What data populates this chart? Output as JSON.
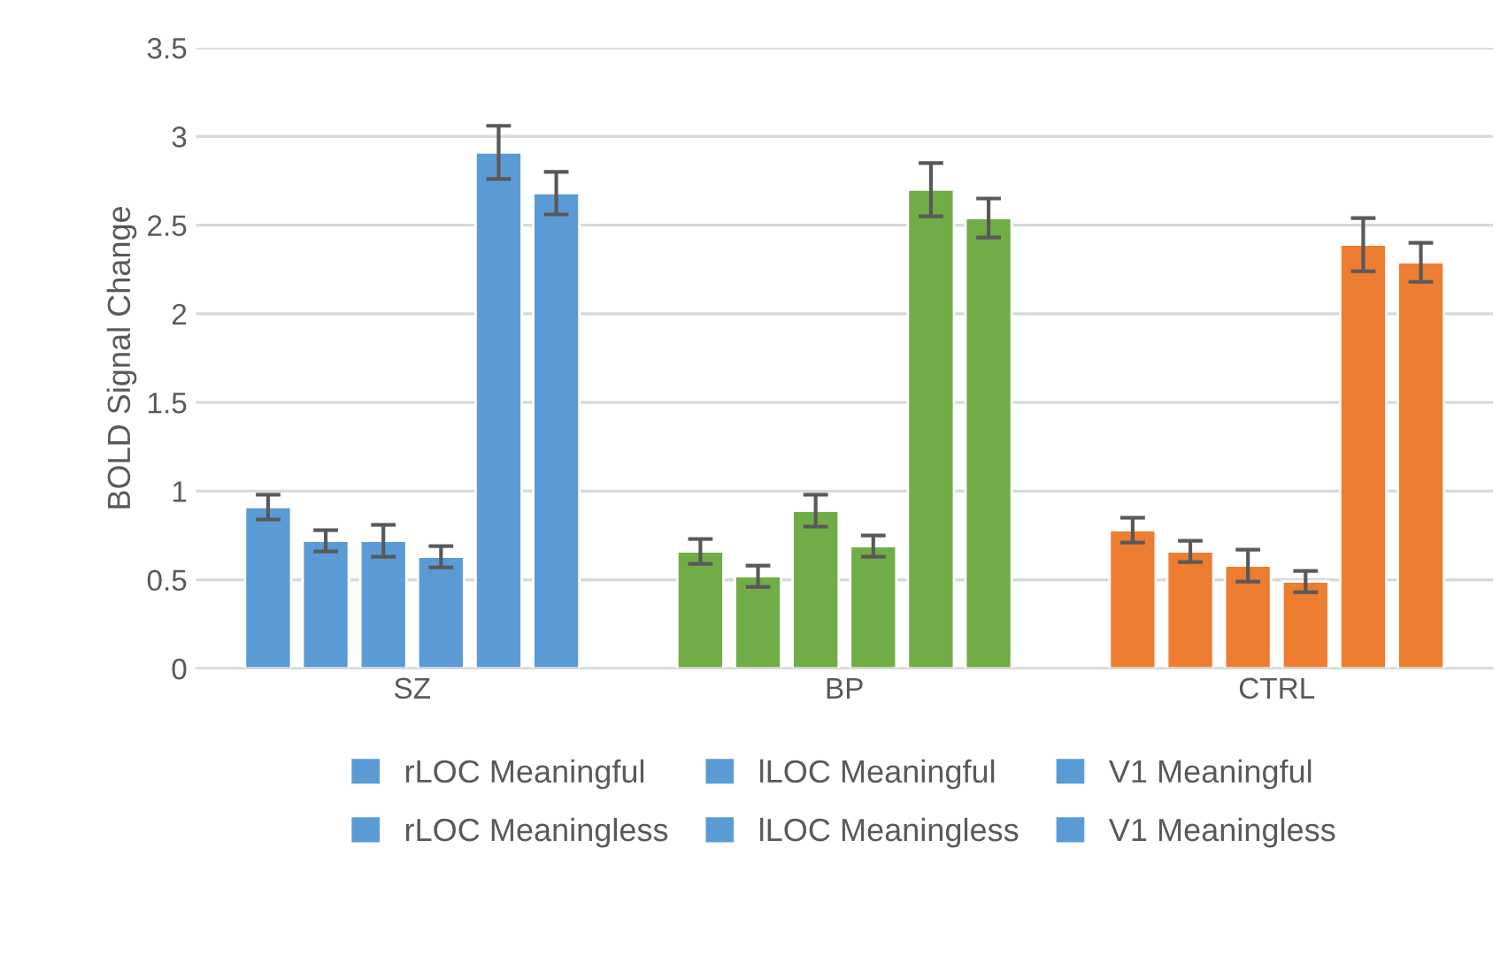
{
  "chart_data": {
    "type": "bar",
    "ylabel": "BOLD Signal Change",
    "categories": [
      "SZ",
      "BP",
      "CTRL"
    ],
    "series": [
      {
        "name": "rLOC Meaningful",
        "color": "#5b9bd5",
        "colors": [
          "#5b9bd5",
          "#70ad47",
          "#ed7d31"
        ],
        "values": [
          0.91,
          0.66,
          0.78
        ],
        "errors": [
          0.07,
          0.07,
          0.07
        ]
      },
      {
        "name": "rLOC Meaningless",
        "color": "#5b9bd5",
        "colors": [
          "#5b9bd5",
          "#70ad47",
          "#ed7d31"
        ],
        "values": [
          0.72,
          0.52,
          0.66
        ],
        "errors": [
          0.06,
          0.06,
          0.06
        ]
      },
      {
        "name": "lLOC Meaningful",
        "color": "#5b9bd5",
        "colors": [
          "#5b9bd5",
          "#70ad47",
          "#ed7d31"
        ],
        "values": [
          0.72,
          0.89,
          0.58
        ],
        "errors": [
          0.09,
          0.09,
          0.09
        ]
      },
      {
        "name": "lLOC Meaningless",
        "color": "#5b9bd5",
        "colors": [
          "#5b9bd5",
          "#70ad47",
          "#ed7d31"
        ],
        "values": [
          0.63,
          0.69,
          0.49
        ],
        "errors": [
          0.06,
          0.06,
          0.06
        ]
      },
      {
        "name": "V1 Meaningful",
        "color": "#5b9bd5",
        "colors": [
          "#5b9bd5",
          "#70ad47",
          "#ed7d31"
        ],
        "values": [
          2.91,
          2.7,
          2.39
        ],
        "errors": [
          0.15,
          0.15,
          0.15
        ]
      },
      {
        "name": "V1 Meaningless",
        "color": "#5b9bd5",
        "colors": [
          "#5b9bd5",
          "#70ad47",
          "#ed7d31"
        ],
        "values": [
          2.68,
          2.54,
          2.29
        ],
        "errors": [
          0.12,
          0.11,
          0.11
        ]
      }
    ],
    "ylim": [
      0,
      3.5
    ],
    "yticks": [
      0,
      0.5,
      1,
      1.5,
      2,
      2.5,
      3,
      3.5
    ],
    "grid": "y",
    "legend": "bottom"
  }
}
